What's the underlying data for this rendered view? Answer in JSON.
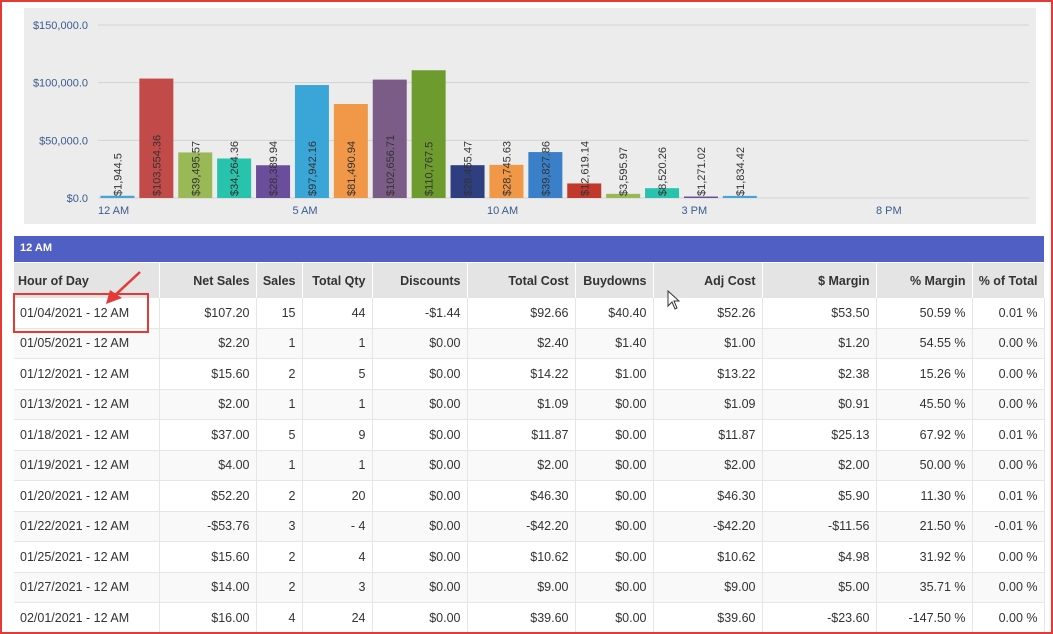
{
  "chart_data": {
    "type": "bar",
    "y_ticks": [
      "$150,000.0",
      "$100,000.0",
      "$50,000.0",
      "$0.0"
    ],
    "y_tick_values": [
      150000,
      100000,
      50000,
      0
    ],
    "ylim": [
      0,
      150000
    ],
    "x_ticks": [
      "12 AM",
      "5 AM",
      "10 AM",
      "3 PM",
      "8 PM"
    ],
    "x_tick_hours": [
      0,
      5,
      10,
      15,
      20
    ],
    "grid": true,
    "bars": [
      {
        "hour": 0,
        "value": 1944.5,
        "label": "$1,944.5",
        "color": "#4aa3d6"
      },
      {
        "hour": 1,
        "value": 103554.36,
        "label": "$103,554.36",
        "color": "#c24a48"
      },
      {
        "hour": 2,
        "value": 39495.57,
        "label": "$39,495.57",
        "color": "#99b957"
      },
      {
        "hour": 3,
        "value": 34264.36,
        "label": "$34,264.36",
        "color": "#28c3ac"
      },
      {
        "hour": 4,
        "value": 28389.94,
        "label": "$28,389.94",
        "color": "#6b4e9b"
      },
      {
        "hour": 5,
        "value": 97942.16,
        "label": "$97,942.16",
        "color": "#3aa6d8"
      },
      {
        "hour": 6,
        "value": 81490.94,
        "label": "$81,490.94",
        "color": "#f19748"
      },
      {
        "hour": 7,
        "value": 102656.71,
        "label": "$102,656.71",
        "color": "#7b5c86"
      },
      {
        "hour": 8,
        "value": 110767.5,
        "label": "$110,767.5",
        "color": "#6e9b2e"
      },
      {
        "hour": 9,
        "value": 28455.47,
        "label": "$28,455.47",
        "color": "#2f3e80"
      },
      {
        "hour": 10,
        "value": 28745.63,
        "label": "$28,745.63",
        "color": "#f19748"
      },
      {
        "hour": 11,
        "value": 39827.86,
        "label": "$39,827.86",
        "color": "#3a80c8"
      },
      {
        "hour": 12,
        "value": 12619.14,
        "label": "$12,619.14",
        "color": "#c0392b"
      },
      {
        "hour": 13,
        "value": 3595.97,
        "label": "$3,595.97",
        "color": "#99b957"
      },
      {
        "hour": 14,
        "value": 8520.26,
        "label": "$8,520.26",
        "color": "#28c3ac"
      },
      {
        "hour": 15,
        "value": 1271.02,
        "label": "$1,271.02",
        "color": "#6b4e9b"
      },
      {
        "hour": 16,
        "value": 1834.42,
        "label": "$1,834.42",
        "color": "#4aa3d6"
      }
    ]
  },
  "section": {
    "title": "12 AM"
  },
  "table": {
    "headers": [
      "Hour of Day",
      "Net Sales",
      "Sales",
      "Total Qty",
      "Discounts",
      "Total Cost",
      "Buydowns",
      "Adj Cost",
      "$ Margin",
      "% Margin",
      "% of Total"
    ],
    "rows": [
      [
        "01/04/2021 - 12 AM",
        "$107.20",
        "15",
        "44",
        "-$1.44",
        "$92.66",
        "$40.40",
        "$52.26",
        "$53.50",
        "50.59 %",
        "0.01 %"
      ],
      [
        "01/05/2021 - 12 AM",
        "$2.20",
        "1",
        "1",
        "$0.00",
        "$2.40",
        "$1.40",
        "$1.00",
        "$1.20",
        "54.55 %",
        "0.00 %"
      ],
      [
        "01/12/2021 - 12 AM",
        "$15.60",
        "2",
        "5",
        "$0.00",
        "$14.22",
        "$1.00",
        "$13.22",
        "$2.38",
        "15.26 %",
        "0.00 %"
      ],
      [
        "01/13/2021 - 12 AM",
        "$2.00",
        "1",
        "1",
        "$0.00",
        "$1.09",
        "$0.00",
        "$1.09",
        "$0.91",
        "45.50 %",
        "0.00 %"
      ],
      [
        "01/18/2021 - 12 AM",
        "$37.00",
        "5",
        "9",
        "$0.00",
        "$11.87",
        "$0.00",
        "$11.87",
        "$25.13",
        "67.92 %",
        "0.01 %"
      ],
      [
        "01/19/2021 - 12 AM",
        "$4.00",
        "1",
        "1",
        "$0.00",
        "$2.00",
        "$0.00",
        "$2.00",
        "$2.00",
        "50.00 %",
        "0.00 %"
      ],
      [
        "01/20/2021 - 12 AM",
        "$52.20",
        "2",
        "20",
        "$0.00",
        "$46.30",
        "$0.00",
        "$46.30",
        "$5.90",
        "11.30 %",
        "0.01 %"
      ],
      [
        "01/22/2021 - 12 AM",
        "-$53.76",
        "3",
        "- 4",
        "$0.00",
        "-$42.20",
        "$0.00",
        "-$42.20",
        "-$11.56",
        "21.50 %",
        "-0.01 %"
      ],
      [
        "01/25/2021 - 12 AM",
        "$15.60",
        "2",
        "4",
        "$0.00",
        "$10.62",
        "$0.00",
        "$10.62",
        "$4.98",
        "31.92 %",
        "0.00 %"
      ],
      [
        "01/27/2021 - 12 AM",
        "$14.00",
        "2",
        "3",
        "$0.00",
        "$9.00",
        "$0.00",
        "$9.00",
        "$5.00",
        "35.71 %",
        "0.00 %"
      ],
      [
        "02/01/2021 - 12 AM",
        "$16.00",
        "4",
        "24",
        "$0.00",
        "$39.60",
        "$0.00",
        "$39.60",
        "-$23.60",
        "-147.50 %",
        "0.00 %"
      ]
    ]
  },
  "colors": {
    "accent": "#4f5fc4",
    "annotation": "#e53935"
  }
}
